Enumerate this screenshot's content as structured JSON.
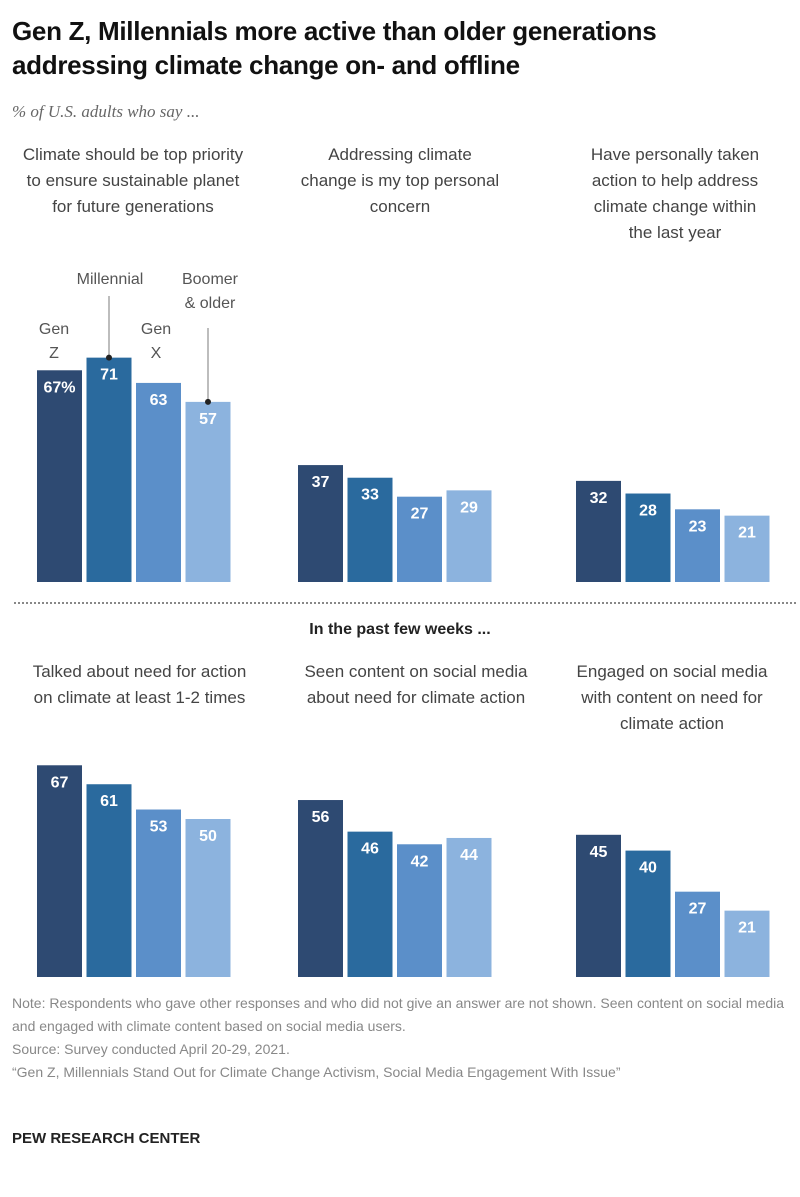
{
  "header": {
    "title": "Gen Z, Millennials more active than older generations addressing climate change on- and offline",
    "subtitle": "% of U.S. adults who say ..."
  },
  "legend": {
    "gen_z": "Gen Z",
    "millennial": "Millennial",
    "gen_x": "Gen X",
    "boomer": "Boomer & older"
  },
  "section_heading": "In the past few weeks ...",
  "colors": {
    "gen_z": "#2e4a72",
    "millennial": "#2a6a9e",
    "gen_x": "#5b8fc9",
    "boomer": "#8cb3de"
  },
  "chart_data": {
    "type": "bar",
    "title": "Gen Z, Millennials more active than older generations addressing climate change on- and offline",
    "subtitle": "% of U.S. adults who say ...",
    "categories": [
      "Gen Z",
      "Millennial",
      "Gen X",
      "Boomer & older"
    ],
    "unit": "%",
    "ylim": [
      0,
      100
    ],
    "grid": false,
    "panels": [
      {
        "label": "Climate should be top priority to ensure sustainable planet for future generations",
        "row": "top",
        "values": [
          67,
          71,
          63,
          57
        ],
        "value_labels": [
          "67%",
          "71",
          "63",
          "57"
        ]
      },
      {
        "label": "Addressing climate change is my top personal concern",
        "row": "top",
        "values": [
          37,
          33,
          27,
          29
        ],
        "value_labels": [
          "37",
          "33",
          "27",
          "29"
        ]
      },
      {
        "label": "Have personally taken action to help address climate change within the last year",
        "row": "top",
        "values": [
          32,
          28,
          23,
          21
        ],
        "value_labels": [
          "32",
          "28",
          "23",
          "21"
        ]
      },
      {
        "label": "Talked about need for action on climate at least 1-2 times",
        "row": "bottom",
        "section": "In the past few weeks ...",
        "values": [
          67,
          61,
          53,
          50
        ],
        "value_labels": [
          "67",
          "61",
          "53",
          "50"
        ]
      },
      {
        "label": "Seen content on social media about need for climate action",
        "row": "bottom",
        "section": "In the past few weeks ...",
        "values": [
          56,
          46,
          42,
          44
        ],
        "value_labels": [
          "56",
          "46",
          "42",
          "44"
        ]
      },
      {
        "label": "Engaged on social media with content on need for climate action",
        "row": "bottom",
        "section": "In the past few weeks ...",
        "values": [
          45,
          40,
          27,
          21
        ],
        "value_labels": [
          "45",
          "40",
          "27",
          "21"
        ]
      }
    ]
  },
  "footer": {
    "note": "Note: Respondents who gave other responses and who did not give an answer are not shown. Seen content on social media and engaged with climate content based on social media users.",
    "source": "Source: Survey conducted April 20-29, 2021.",
    "report": "“Gen Z, Millennials Stand Out for Climate Change Activism, Social Media Engagement With Issue”",
    "brand": "PEW RESEARCH CENTER"
  }
}
